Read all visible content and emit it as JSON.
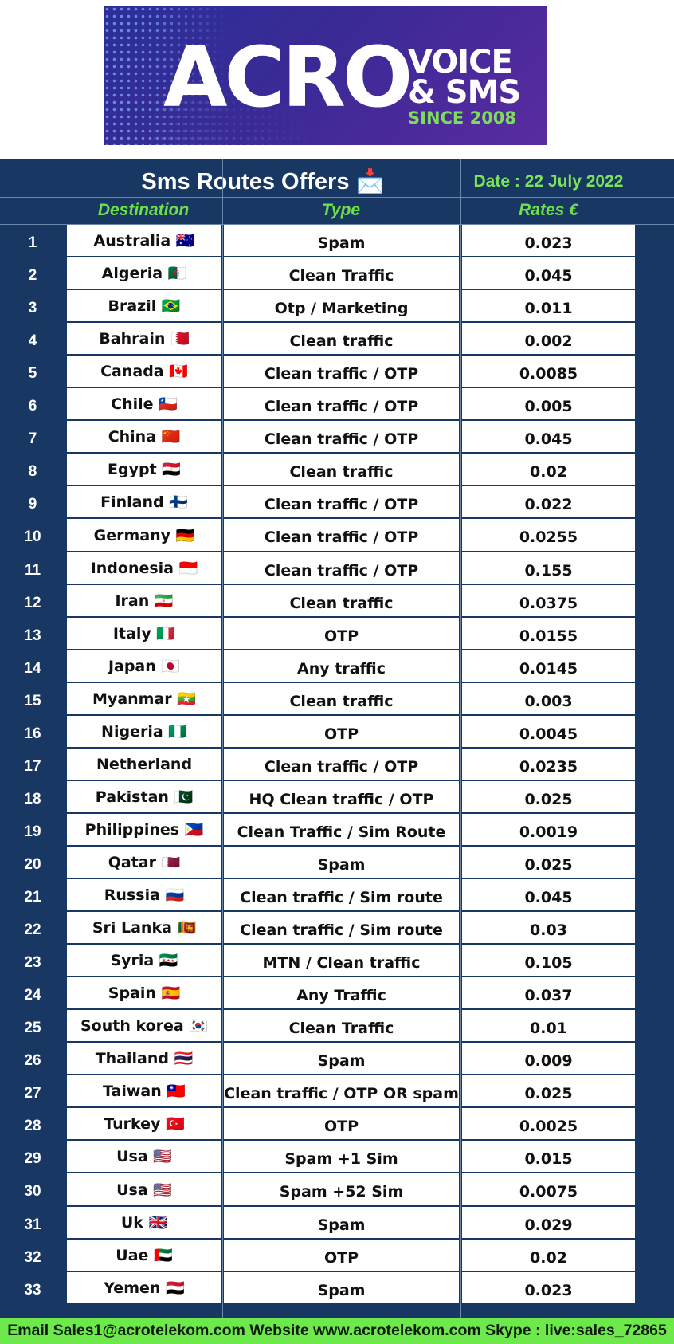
{
  "banner": {
    "brand_name": "ACRO",
    "line1": "VOICE",
    "line2": "& SMS",
    "line3": "SINCE 2008"
  },
  "table": {
    "title": "Sms Routes Offers 📩",
    "date": "Date : 22 July 2022",
    "headers": {
      "destination": "Destination",
      "type": "Type",
      "rates": "Rates €"
    },
    "rows": [
      {
        "n": "1",
        "destination": "Australia 🇦🇺",
        "type": "Spam",
        "rate": "0.023"
      },
      {
        "n": "2",
        "destination": "Algeria 🇩🇿",
        "type": "Clean Traffic",
        "rate": "0.045"
      },
      {
        "n": "3",
        "destination": "Brazil 🇧🇷",
        "type": "Otp / Marketing",
        "rate": "0.011"
      },
      {
        "n": "4",
        "destination": "Bahrain 🇧🇭",
        "type": "Clean traffic",
        "rate": "0.002"
      },
      {
        "n": "5",
        "destination": "Canada 🇨🇦",
        "type": "Clean traffic / OTP",
        "rate": "0.0085"
      },
      {
        "n": "6",
        "destination": "Chile 🇨🇱",
        "type": "Clean traffic / OTP",
        "rate": "0.005"
      },
      {
        "n": "7",
        "destination": "China 🇨🇳",
        "type": "Clean traffic / OTP",
        "rate": "0.045"
      },
      {
        "n": "8",
        "destination": "Egypt 🇪🇬",
        "type": "Clean traffic",
        "rate": "0.02"
      },
      {
        "n": "9",
        "destination": "Finland 🇫🇮",
        "type": "Clean traffic / OTP",
        "rate": "0.022"
      },
      {
        "n": "10",
        "destination": "Germany 🇩🇪",
        "type": "Clean traffic / OTP",
        "rate": "0.0255"
      },
      {
        "n": "11",
        "destination": "Indonesia 🇮🇩",
        "type": "Clean traffic / OTP",
        "rate": "0.155"
      },
      {
        "n": "12",
        "destination": "Iran 🇮🇷",
        "type": "Clean traffic",
        "rate": "0.0375"
      },
      {
        "n": "13",
        "destination": "Italy 🇮🇹",
        "type": "OTP",
        "rate": "0.0155"
      },
      {
        "n": "14",
        "destination": "Japan 🇯🇵",
        "type": "Any traffic",
        "rate": "0.0145"
      },
      {
        "n": "15",
        "destination": "Myanmar 🇲🇲",
        "type": "Clean traffic",
        "rate": "0.003"
      },
      {
        "n": "16",
        "destination": "Nigeria 🇳🇬",
        "type": "OTP",
        "rate": "0.0045"
      },
      {
        "n": "17",
        "destination": "Netherland",
        "type": "Clean traffic / OTP",
        "rate": "0.0235"
      },
      {
        "n": "18",
        "destination": "Pakistan 🇵🇰",
        "type": "HQ Clean traffic / OTP",
        "rate": "0.025"
      },
      {
        "n": "19",
        "destination": "Philippines 🇵🇭",
        "type": "Clean Traffic / Sim Route",
        "rate": "0.0019"
      },
      {
        "n": "20",
        "destination": "Qatar 🇶🇦",
        "type": "Spam",
        "rate": "0.025"
      },
      {
        "n": "21",
        "destination": "Russia 🇷🇺",
        "type": "Clean traffic / Sim route",
        "rate": "0.045"
      },
      {
        "n": "22",
        "destination": "Sri Lanka 🇱🇰",
        "type": "Clean traffic / Sim route",
        "rate": "0.03"
      },
      {
        "n": "23",
        "destination": "Syria 🇸🇾",
        "type": "MTN / Clean traffic",
        "rate": "0.105"
      },
      {
        "n": "24",
        "destination": "Spain 🇪🇸",
        "type": "Any Traffic",
        "rate": "0.037"
      },
      {
        "n": "25",
        "destination": "South korea 🇰🇷",
        "type": "Clean Traffic",
        "rate": "0.01"
      },
      {
        "n": "26",
        "destination": "Thailand 🇹🇭",
        "type": "Spam",
        "rate": "0.009"
      },
      {
        "n": "27",
        "destination": "Taiwan 🇹🇼",
        "type": "Clean traffic / OTP OR spam",
        "rate": "0.025"
      },
      {
        "n": "28",
        "destination": "Turkey 🇹🇷",
        "type": "OTP",
        "rate": "0.0025"
      },
      {
        "n": "29",
        "destination": "Usa 🇺🇸",
        "type": "Spam +1 Sim",
        "rate": "0.015"
      },
      {
        "n": "30",
        "destination": "Usa 🇺🇸",
        "type": "Spam +52 Sim",
        "rate": "0.0075"
      },
      {
        "n": "31",
        "destination": "Uk 🇬🇧",
        "type": "Spam",
        "rate": "0.029"
      },
      {
        "n": "32",
        "destination": "Uae 🇦🇪",
        "type": "OTP",
        "rate": "0.02"
      },
      {
        "n": "33",
        "destination": "Yemen 🇾🇪",
        "type": "Spam",
        "rate": "0.023"
      }
    ]
  },
  "footer": {
    "text": "Email Sales1@acrotelekom.com Website www.acrotelekom.com Skype : live:sales_72865"
  },
  "colors": {
    "sheet_bg": "#183762",
    "header_green": "#6fe04a",
    "footer_green": "#6de94b",
    "banner_purple": "#3a2a95"
  }
}
